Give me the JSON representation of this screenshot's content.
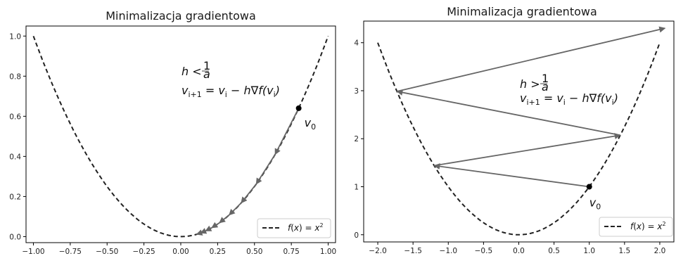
{
  "chart_data": [
    {
      "type": "line",
      "title": "Minimalizacja gradientowa",
      "xlabel": "",
      "ylabel": "",
      "xlim": [
        -1.05,
        1.05
      ],
      "ylim": [
        -0.03,
        1.05
      ],
      "x_ticks": [
        -1.0,
        -0.75,
        -0.5,
        -0.25,
        0.0,
        0.25,
        0.5,
        0.75,
        1.0
      ],
      "x_tick_labels": [
        "−1.00",
        "−0.75",
        "−0.50",
        "−0.25",
        "0.00",
        "0.25",
        "0.50",
        "0.75",
        "1.00"
      ],
      "y_ticks": [
        0.0,
        0.2,
        0.4,
        0.6,
        0.8,
        1.0
      ],
      "y_tick_labels": [
        "0.0",
        "0.2",
        "0.4",
        "0.6",
        "0.8",
        "1.0"
      ],
      "curve": {
        "name": "f(x) = x²",
        "function": "x^2",
        "x_range": [
          -1.0,
          1.0
        ],
        "style": "dashed",
        "color": "#222222"
      },
      "start_point": {
        "label": "v0",
        "x": 0.8,
        "y": 0.64
      },
      "iterates_x": [
        0.8,
        0.64,
        0.512,
        0.41,
        0.328,
        0.262,
        0.21,
        0.168,
        0.134,
        0.107
      ],
      "annotation": {
        "condition": "h < 1/a",
        "update_rule": "v_{i+1} = v_i − h∇f(v_i)"
      },
      "legend": {
        "label": "f(x) = x²",
        "position": "bottom-right"
      },
      "arrow_color": "#666666",
      "grid": false
    },
    {
      "type": "line",
      "title": "Minimalizacja gradientowa",
      "xlabel": "",
      "ylabel": "",
      "xlim": [
        -2.2,
        2.2
      ],
      "ylim": [
        -0.15,
        4.45
      ],
      "x_ticks": [
        -2.0,
        -1.5,
        -1.0,
        -0.5,
        0.0,
        0.5,
        1.0,
        1.5,
        2.0
      ],
      "x_tick_labels": [
        "−2.0",
        "−1.5",
        "−1.0",
        "−0.5",
        "0.0",
        "0.5",
        "1.0",
        "1.5",
        "2.0"
      ],
      "y_ticks": [
        0,
        1,
        2,
        3,
        4
      ],
      "y_tick_labels": [
        "0",
        "1",
        "2",
        "3",
        "4"
      ],
      "curve": {
        "name": "f(x) = x²",
        "function": "x^2",
        "x_range": [
          -2.0,
          2.0
        ],
        "style": "dashed",
        "color": "#222222"
      },
      "start_point": {
        "label": "v0",
        "x": 1.0,
        "y": 1.0
      },
      "iterates_x": [
        1.0,
        -1.2,
        1.44,
        -1.728,
        2.074
      ],
      "annotation": {
        "condition": "h > 1/a",
        "update_rule": "v_{i+1} = v_i − h∇f(v_i)"
      },
      "legend": {
        "label": "f(x) = x²",
        "position": "bottom-right"
      },
      "arrow_color": "#666666",
      "grid": false
    }
  ]
}
